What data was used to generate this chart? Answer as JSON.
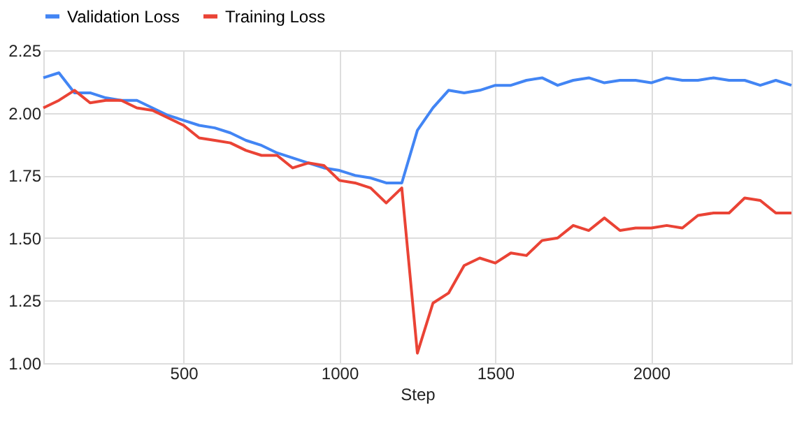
{
  "chart_data": {
    "type": "line",
    "xlabel": "Step",
    "x": [
      50,
      100,
      150,
      200,
      250,
      300,
      350,
      400,
      450,
      500,
      550,
      600,
      650,
      700,
      750,
      800,
      850,
      900,
      950,
      1000,
      1050,
      1100,
      1150,
      1200,
      1250,
      1300,
      1350,
      1400,
      1450,
      1500,
      1550,
      1600,
      1650,
      1700,
      1750,
      1800,
      1850,
      1900,
      1950,
      2000,
      2050,
      2100,
      2150,
      2200,
      2250,
      2300,
      2350,
      2400,
      2450
    ],
    "series": [
      {
        "name": "Validation Loss",
        "color": "#4285f4",
        "values": [
          2.14,
          2.16,
          2.08,
          2.08,
          2.06,
          2.05,
          2.05,
          2.02,
          1.99,
          1.97,
          1.95,
          1.94,
          1.92,
          1.89,
          1.87,
          1.84,
          1.82,
          1.8,
          1.78,
          1.77,
          1.75,
          1.74,
          1.72,
          1.72,
          1.93,
          2.02,
          2.09,
          2.08,
          2.09,
          2.11,
          2.11,
          2.13,
          2.14,
          2.11,
          2.13,
          2.14,
          2.12,
          2.13,
          2.13,
          2.12,
          2.14,
          2.13,
          2.13,
          2.14,
          2.13,
          2.13,
          2.11,
          2.13,
          2.11
        ]
      },
      {
        "name": "Training Loss",
        "color": "#ea4335",
        "values": [
          2.02,
          2.05,
          2.09,
          2.04,
          2.05,
          2.05,
          2.02,
          2.01,
          1.98,
          1.95,
          1.9,
          1.89,
          1.88,
          1.85,
          1.83,
          1.83,
          1.78,
          1.8,
          1.79,
          1.73,
          1.72,
          1.7,
          1.64,
          1.7,
          1.04,
          1.24,
          1.28,
          1.39,
          1.42,
          1.4,
          1.44,
          1.43,
          1.49,
          1.5,
          1.55,
          1.53,
          1.58,
          1.53,
          1.54,
          1.54,
          1.55,
          1.54,
          1.59,
          1.6,
          1.6,
          1.66,
          1.65,
          1.6,
          1.6
        ]
      }
    ],
    "xlim": [
      50,
      2450
    ],
    "xticks": [
      500,
      1000,
      1500,
      2000
    ],
    "ylim": [
      1.0,
      2.25
    ],
    "yticks": [
      {
        "value": 1.0,
        "label": "1.00"
      },
      {
        "value": 1.25,
        "label": "1.25"
      },
      {
        "value": 1.5,
        "label": "1.50"
      },
      {
        "value": 1.75,
        "label": "1.75"
      },
      {
        "value": 2.0,
        "label": "2.00"
      },
      {
        "value": 2.25,
        "label": "2.25"
      }
    ],
    "grid": true,
    "legend": "top",
    "marker": "none",
    "line_style": "solid"
  }
}
